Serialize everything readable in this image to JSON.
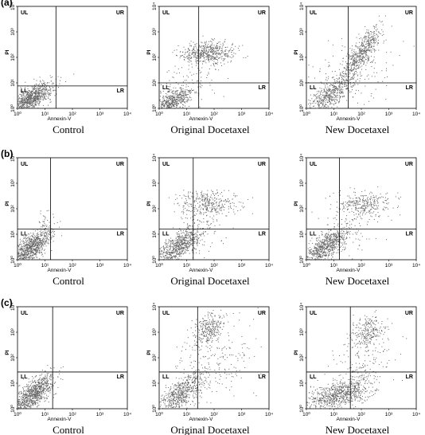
{
  "figure": {
    "panels": [
      {
        "label": "(a)",
        "plots": [
          {
            "caption": "Control"
          },
          {
            "caption": "Original Docetaxel"
          },
          {
            "caption": "New Docetaxel"
          }
        ]
      },
      {
        "label": "(b)",
        "plots": [
          {
            "caption": "Control"
          },
          {
            "caption": "Original Docetaxel"
          },
          {
            "caption": "New Docetaxel"
          }
        ]
      },
      {
        "label": "(c)",
        "plots": [
          {
            "caption": "Control"
          },
          {
            "caption": "Original Docetaxel"
          },
          {
            "caption": "New Docetaxel"
          }
        ]
      }
    ],
    "quadrants": [
      "UL",
      "UR",
      "LL",
      "LR"
    ],
    "x_axis_label": "Annexin-V",
    "y_axis_label": "PI",
    "ticks": [
      "10⁰",
      "10¹",
      "10²",
      "10³",
      "10⁴"
    ]
  }
}
